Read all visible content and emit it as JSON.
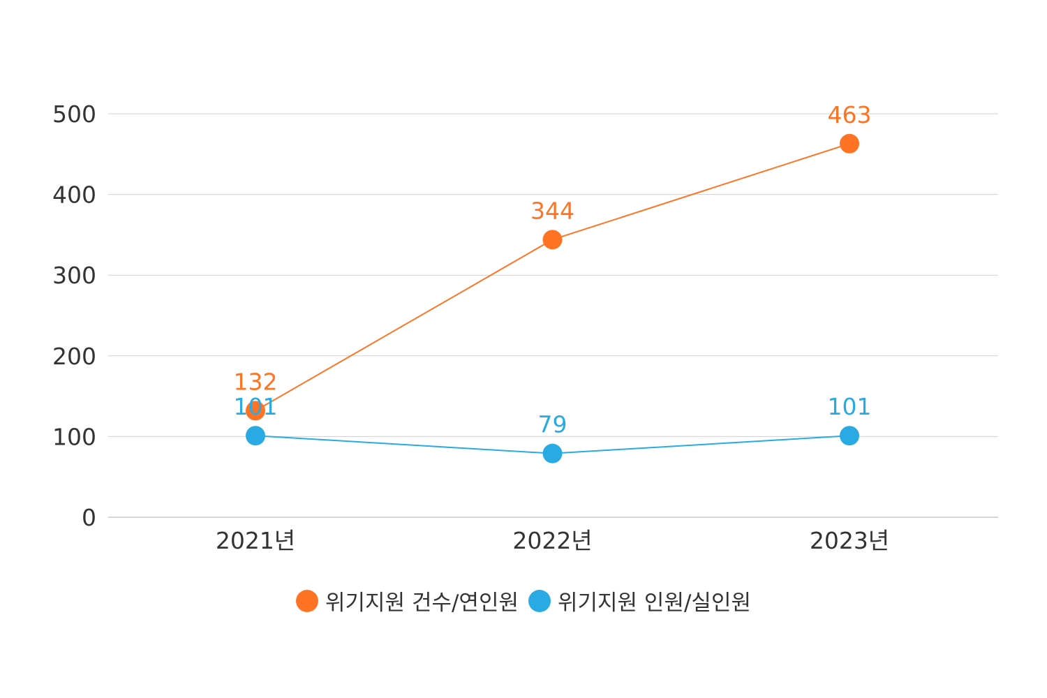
{
  "chart_data": {
    "type": "line",
    "categories": [
      "2021년",
      "2022년",
      "2023년"
    ],
    "ylim": [
      0,
      500
    ],
    "yticks": [
      0,
      100,
      200,
      300,
      400,
      500
    ],
    "grid": true,
    "legend_position": "bottom-center",
    "series": [
      {
        "name": "위기지원 건수/연인원",
        "color": "#ff7324",
        "values": [
          132,
          344,
          463
        ]
      },
      {
        "name": "위기지원 인원/실인원",
        "color": "#29aae3",
        "values": [
          101,
          79,
          101
        ]
      }
    ]
  }
}
